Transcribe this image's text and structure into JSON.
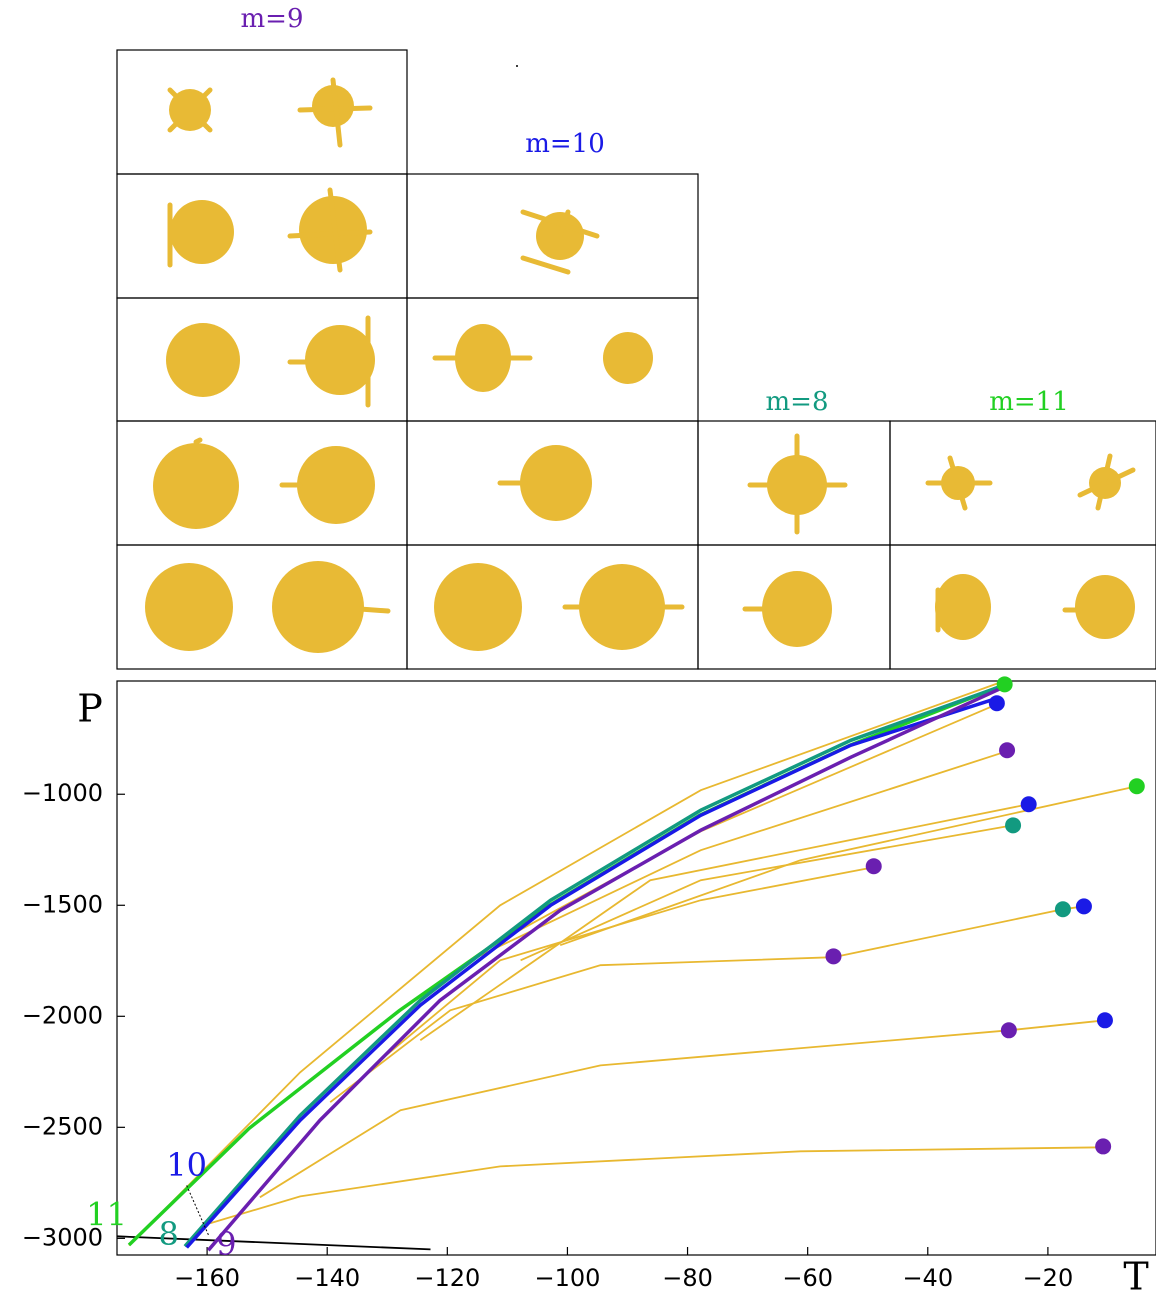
{
  "chart_data": {
    "type": "line",
    "panel_labels": [
      {
        "text": "m=9",
        "color": "#6a1fb0"
      },
      {
        "text": "m=10",
        "color": "#1a1ae6"
      },
      {
        "text": "m=8",
        "color": "#129a80"
      },
      {
        "text": "m=11",
        "color": "#22d022"
      }
    ],
    "xlabel": "T",
    "ylabel": "P",
    "xlim": [
      -175,
      -2
    ],
    "ylim": [
      -3075,
      -490
    ],
    "xticks": [
      {
        "value": -160,
        "label": "−160"
      },
      {
        "value": -140,
        "label": "−140"
      },
      {
        "value": -120,
        "label": "−120"
      },
      {
        "value": -100,
        "label": "−100"
      },
      {
        "value": -80,
        "label": "−80"
      },
      {
        "value": -60,
        "label": "−60"
      },
      {
        "value": -40,
        "label": "−40"
      },
      {
        "value": -20,
        "label": "−20"
      }
    ],
    "yticks": [
      {
        "value": -3000,
        "label": "−3000"
      },
      {
        "value": -2500,
        "label": "−2500"
      },
      {
        "value": -2000,
        "label": "−2000"
      },
      {
        "value": -1500,
        "label": "−1500"
      },
      {
        "value": -1000,
        "label": "−1000"
      }
    ],
    "series": [
      {
        "style": "thin",
        "color": "#000000",
        "x": [
          -175,
          -122.8
        ],
        "y": [
          -2991,
          -3050
        ]
      },
      {
        "style": "thin",
        "color": "#e8b830",
        "x": [
          -159.5,
          -144.5,
          -111.2,
          -61.2,
          -10.8
        ],
        "y": [
          -2932,
          -2811,
          -2676,
          -2608,
          -2590
        ]
      },
      {
        "style": "thin",
        "color": "#e8b830",
        "x": [
          -151.2,
          -127.8,
          -94.5,
          -26.5,
          -10.5
        ],
        "y": [
          -2815,
          -2423,
          -2221,
          -2063,
          -2018
        ]
      },
      {
        "style": "thin",
        "color": "#e8b830",
        "x": [
          -139.5,
          -119.5,
          -94.5,
          -55.7,
          -17.5,
          -14
        ],
        "y": [
          -2387,
          -1973,
          -1770,
          -1734,
          -1518,
          -1505
        ]
      },
      {
        "style": "thin",
        "color": "#e8b830",
        "x": [
          -131.2,
          -111.2,
          -77.8,
          -49
        ],
        "y": [
          -2198,
          -1748,
          -1477,
          -1329
        ]
      },
      {
        "style": "thin",
        "color": "#e8b830",
        "x": [
          -107.8,
          -77.8,
          -25.8
        ],
        "y": [
          -1748,
          -1387,
          -1140
        ]
      },
      {
        "style": "thin",
        "color": "#e8b830",
        "x": [
          -101.2,
          -61.2,
          -5.2
        ],
        "y": [
          -1680,
          -1297,
          -964
        ]
      },
      {
        "style": "thin",
        "color": "#e8b830",
        "x": [
          -124.5,
          -86.2,
          -23.2
        ],
        "y": [
          -2108,
          -1387,
          -1045
        ]
      },
      {
        "style": "thin",
        "color": "#e8b830",
        "x": [
          -116.2,
          -77.8,
          -26.8
        ],
        "y": [
          -1748,
          -1252,
          -806
        ]
      },
      {
        "style": "thin",
        "color": "#e8b830",
        "x": [
          -111.2,
          -77.8,
          -28.5
        ],
        "y": [
          -1660,
          -1167,
          -595
        ]
      },
      {
        "style": "thin",
        "color": "#e8b830",
        "x": [
          -173,
          -144.5,
          -111.2,
          -77.8,
          -27.8
        ],
        "y": [
          -3032,
          -2252,
          -1500,
          -982,
          -495
        ]
      },
      {
        "style": "thick",
        "name": "11",
        "color": "#22d022",
        "x": [
          -173,
          -153,
          -128,
          -103,
          -78,
          -53,
          -27
        ],
        "y": [
          -3030,
          -2505,
          -1975,
          -1500,
          -1095,
          -780,
          -505
        ]
      },
      {
        "style": "thick",
        "name": "8",
        "color": "#129a80",
        "x": [
          -163.7,
          -144.5,
          -124.5,
          -102.8,
          -77.8,
          -52.8,
          -27.8
        ],
        "y": [
          -3036,
          -2446,
          -1928,
          -1477,
          -1072,
          -757,
          -514
        ]
      },
      {
        "style": "thick",
        "name": "10",
        "color": "#1a1ae6",
        "x": [
          -163.4,
          -144.5,
          -124.5,
          -102.8,
          -77.8,
          -52.8,
          -28.5
        ],
        "y": [
          -3041,
          -2468,
          -1950,
          -1500,
          -1095,
          -779,
          -568
        ]
      },
      {
        "style": "thick",
        "name": "9",
        "color": "#6a1fb0",
        "x": [
          -159.8,
          -141.2,
          -121.2,
          -101.2,
          -77.8,
          -52.8,
          -27.8
        ],
        "y": [
          -3054,
          -2468,
          -1928,
          -1523,
          -1162,
          -833,
          -523
        ]
      },
      {
        "style": "markers",
        "color": "#22d022",
        "x": [
          -27.2,
          -5.2
        ],
        "y": [
          -505,
          -964
        ]
      },
      {
        "style": "markers",
        "color": "#1a1ae6",
        "x": [
          -28.5,
          -23.2,
          -14,
          -10.5
        ],
        "y": [
          -590,
          -1045,
          -1505,
          -2018
        ]
      },
      {
        "style": "markers",
        "color": "#6a1fb0",
        "x": [
          -26.8,
          -49,
          -55.7,
          -26.5,
          -10.8
        ],
        "y": [
          -802,
          -1324,
          -1730,
          -2063,
          -2586
        ]
      },
      {
        "style": "markers",
        "color": "#129a80",
        "x": [
          -25.8,
          -17.5
        ],
        "y": [
          -1140,
          -1518
        ]
      }
    ]
  }
}
